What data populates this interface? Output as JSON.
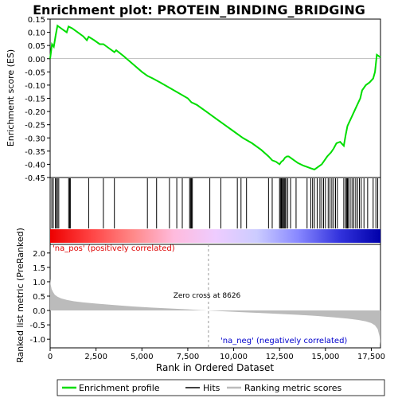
{
  "chart_data": {
    "type": "line",
    "title": "Enrichment plot: PROTEIN_BINDING_BRIDGING",
    "top_panel": {
      "ylabel": "Enrichment score (ES)",
      "ylim": [
        -0.45,
        0.15
      ],
      "yticks": [
        "0.15",
        "0.10",
        "0.05",
        "0.00",
        "-0.05",
        "-0.10",
        "-0.15",
        "-0.20",
        "-0.25",
        "-0.30",
        "-0.35",
        "-0.40",
        "-0.45"
      ],
      "ytick_values": [
        0.15,
        0.1,
        0.05,
        0.0,
        -0.05,
        -0.1,
        -0.15,
        -0.2,
        -0.25,
        -0.3,
        -0.35,
        -0.4,
        -0.45
      ],
      "series_name": "Enrichment profile",
      "line_color": "#00dd00",
      "es_x": [
        0,
        100,
        200,
        300,
        400,
        500,
        700,
        900,
        1000,
        1200,
        1500,
        1800,
        2000,
        2100,
        2400,
        2700,
        2900,
        3200,
        3500,
        3600,
        4000,
        4500,
        5000,
        5300,
        5600,
        6000,
        6500,
        7000,
        7500,
        7700,
        8000,
        8500,
        9000,
        9500,
        10000,
        10500,
        11000,
        11500,
        11900,
        12100,
        12300,
        12500,
        12600,
        12700,
        12800,
        12900,
        13000,
        13200,
        13500,
        13800,
        14000,
        14200,
        14400,
        14600,
        14800,
        14950,
        15100,
        15300,
        15450,
        15600,
        15800,
        16000,
        16100,
        16200,
        16300,
        16400,
        16500,
        16600,
        16700,
        16800,
        16900,
        17000,
        17200,
        17400,
        17600,
        17700,
        17800,
        17900,
        18000
      ],
      "es_y": [
        0.0,
        0.055,
        0.045,
        0.088,
        0.125,
        0.12,
        0.11,
        0.1,
        0.122,
        0.115,
        0.1,
        0.085,
        0.07,
        0.083,
        0.07,
        0.055,
        0.055,
        0.04,
        0.025,
        0.032,
        0.01,
        -0.02,
        -0.05,
        -0.065,
        -0.075,
        -0.09,
        -0.11,
        -0.13,
        -0.15,
        -0.165,
        -0.175,
        -0.2,
        -0.225,
        -0.25,
        -0.275,
        -0.3,
        -0.32,
        -0.345,
        -0.37,
        -0.385,
        -0.39,
        -0.4,
        -0.39,
        -0.385,
        -0.375,
        -0.37,
        -0.37,
        -0.38,
        -0.395,
        -0.405,
        -0.41,
        -0.415,
        -0.42,
        -0.41,
        -0.4,
        -0.385,
        -0.37,
        -0.355,
        -0.34,
        -0.32,
        -0.315,
        -0.33,
        -0.29,
        -0.255,
        -0.24,
        -0.225,
        -0.21,
        -0.195,
        -0.18,
        -0.165,
        -0.15,
        -0.12,
        -0.1,
        -0.09,
        -0.075,
        -0.05,
        0.015,
        0.01,
        0.005
      ],
      "hit_positions": [
        90,
        170,
        290,
        330,
        400,
        470,
        1010,
        1060,
        1100,
        2100,
        2900,
        3500,
        5300,
        5800,
        6500,
        6900,
        7200,
        7600,
        7650,
        7700,
        7750,
        8700,
        9300,
        10200,
        10400,
        10700,
        11900,
        12100,
        12500,
        12550,
        12600,
        12650,
        12700,
        12750,
        12800,
        12850,
        12950,
        13100,
        13400,
        14000,
        14200,
        14300,
        14400,
        14550,
        14700,
        14800,
        14900,
        15000,
        15150,
        15250,
        15350,
        15450,
        15550,
        15650,
        16000,
        16100,
        16150,
        16200,
        16250,
        16350,
        16450,
        16550,
        16650,
        16750,
        16850,
        16950,
        17100,
        17300,
        17600,
        17750,
        17850
      ]
    },
    "middle_panel": {
      "colorbar_gradient": [
        "#ee0000",
        "#ff4444",
        "#ff8888",
        "#ffbbdd",
        "#eeccff",
        "#ccccff",
        "#8888ff",
        "#3333dd",
        "#0000aa"
      ],
      "label_left": "'na_pos' (positively correlated)",
      "label_right": "'na_neg' (negatively correlated)",
      "label_left_color": "#dd0000",
      "label_right_color": "#0000cc",
      "zero_cross_label": "Zero cross at 8626",
      "zero_cross_x": 8626
    },
    "bottom_panel": {
      "ylabel": "Ranked list metric (PreRanked)",
      "ylim": [
        -1.3,
        2.3
      ],
      "yticks": [
        "2.0",
        "1.5",
        "1.0",
        "0.5",
        "0.0",
        "-0.5",
        "-1.0"
      ],
      "ytick_values": [
        2.0,
        1.5,
        1.0,
        0.5,
        0.0,
        -0.5,
        -1.0
      ],
      "metric_x": [
        0,
        30,
        80,
        150,
        250,
        400,
        600,
        900,
        1300,
        1800,
        2500,
        3500,
        4500,
        5500,
        6500,
        7500,
        8626,
        9500,
        10500,
        11500,
        12500,
        13500,
        14500,
        15500,
        16200,
        16800,
        17200,
        17500,
        17700,
        17850,
        17950,
        18000
      ],
      "metric_y": [
        1.1,
        0.9,
        0.75,
        0.65,
        0.55,
        0.48,
        0.42,
        0.37,
        0.32,
        0.28,
        0.24,
        0.19,
        0.14,
        0.1,
        0.07,
        0.04,
        0.0,
        -0.03,
        -0.06,
        -0.09,
        -0.12,
        -0.15,
        -0.19,
        -0.24,
        -0.28,
        -0.33,
        -0.38,
        -0.44,
        -0.52,
        -0.65,
        -0.9,
        -1.2
      ]
    },
    "xlabel": "Rank in Ordered Dataset",
    "xlim": [
      0,
      18000
    ],
    "xticks": [
      "0",
      "2,500",
      "5,000",
      "7,500",
      "10,000",
      "12,500",
      "15,000",
      "17,500"
    ],
    "xtick_values": [
      0,
      2500,
      5000,
      7500,
      10000,
      12500,
      15000,
      17500
    ],
    "legend": {
      "items": [
        {
          "label": "Enrichment profile",
          "color": "#00dd00"
        },
        {
          "label": "Hits",
          "color": "#000000"
        },
        {
          "label": "Ranking metric scores",
          "color": "#bbbbbb"
        }
      ]
    }
  }
}
